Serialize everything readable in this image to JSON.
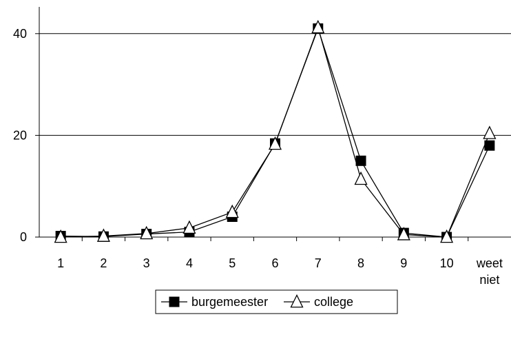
{
  "chart_data": {
    "type": "line",
    "title": "",
    "xlabel": "",
    "ylabel": "",
    "categories": [
      "1",
      "2",
      "3",
      "4",
      "5",
      "6",
      "7",
      "8",
      "9",
      "10",
      [
        "weet",
        "niet"
      ]
    ],
    "ylim": [
      0,
      45
    ],
    "yticks": [
      0,
      20,
      40
    ],
    "grid": "horizontal",
    "legend_position": "bottom",
    "series": [
      {
        "name": "burgemeester",
        "marker": "filled-square",
        "values": [
          0.2,
          0.1,
          0.6,
          1.0,
          4.0,
          18.4,
          41.0,
          15.0,
          0.8,
          0.0,
          18.0
        ]
      },
      {
        "name": "college",
        "marker": "open-triangle",
        "values": [
          0.0,
          0.2,
          0.7,
          1.8,
          4.9,
          18.3,
          41.2,
          11.4,
          0.5,
          0.0,
          20.4
        ]
      }
    ],
    "colors": {
      "line": "#000000",
      "grid": "#000000",
      "background": "#ffffff"
    }
  }
}
